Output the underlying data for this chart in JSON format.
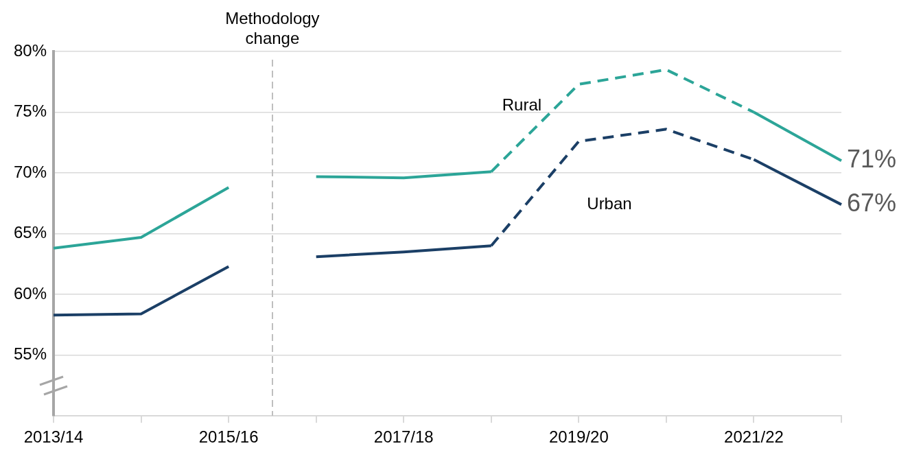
{
  "chart_data": {
    "type": "line",
    "ylim": [
      50,
      80
    ],
    "categories": [
      "2013/14",
      null,
      "2015/16",
      null,
      "2017/18",
      null,
      "2019/20",
      null,
      "2021/22",
      null
    ],
    "yticks": [
      {
        "value": 55,
        "label": "55%"
      },
      {
        "value": 60,
        "label": "60%"
      },
      {
        "value": 65,
        "label": "65%"
      },
      {
        "value": 70,
        "label": "70%"
      },
      {
        "value": 75,
        "label": "75%"
      },
      {
        "value": 80,
        "label": "80%"
      }
    ],
    "grid": "y",
    "legend": false,
    "marker": "none",
    "annotations": [
      "Methodology change",
      "Rural",
      "Urban"
    ],
    "series": [
      {
        "color": "#2ca598",
        "line_style": "solid",
        "values": [
          63.8,
          64.7,
          68.8,
          null,
          null,
          null,
          null,
          null,
          null,
          null
        ]
      },
      {
        "color": "#2ca598",
        "line_style": "solid",
        "values": [
          null,
          null,
          null,
          69.7,
          69.6,
          70.1,
          null,
          null,
          null,
          null
        ]
      },
      {
        "color": "#2ca598",
        "line_style": "dashed",
        "values": [
          null,
          null,
          null,
          null,
          null,
          70.1,
          77.3,
          78.5,
          75.0,
          null
        ]
      },
      {
        "color": "#2ca598",
        "line_style": "solid",
        "values": [
          null,
          null,
          null,
          null,
          null,
          null,
          null,
          null,
          75.0,
          71.0
        ],
        "value_labels": [
          null,
          null,
          null,
          null,
          null,
          null,
          null,
          null,
          null,
          "71%"
        ]
      },
      {
        "color": "#1b3f66",
        "line_style": "solid",
        "values": [
          58.3,
          58.4,
          62.3,
          null,
          null,
          null,
          null,
          null,
          null,
          null
        ]
      },
      {
        "color": "#1b3f66",
        "line_style": "solid",
        "values": [
          null,
          null,
          null,
          63.1,
          63.5,
          64.0,
          null,
          null,
          null,
          null
        ]
      },
      {
        "color": "#1b3f66",
        "line_style": "dashed",
        "values": [
          null,
          null,
          null,
          null,
          null,
          64.0,
          72.6,
          73.6,
          71.1,
          null
        ]
      },
      {
        "color": "#1b3f66",
        "line_style": "solid",
        "values": [
          null,
          null,
          null,
          null,
          null,
          null,
          null,
          null,
          71.1,
          67.4
        ],
        "value_labels": [
          null,
          null,
          null,
          null,
          null,
          null,
          null,
          null,
          null,
          "67%"
        ]
      }
    ]
  }
}
